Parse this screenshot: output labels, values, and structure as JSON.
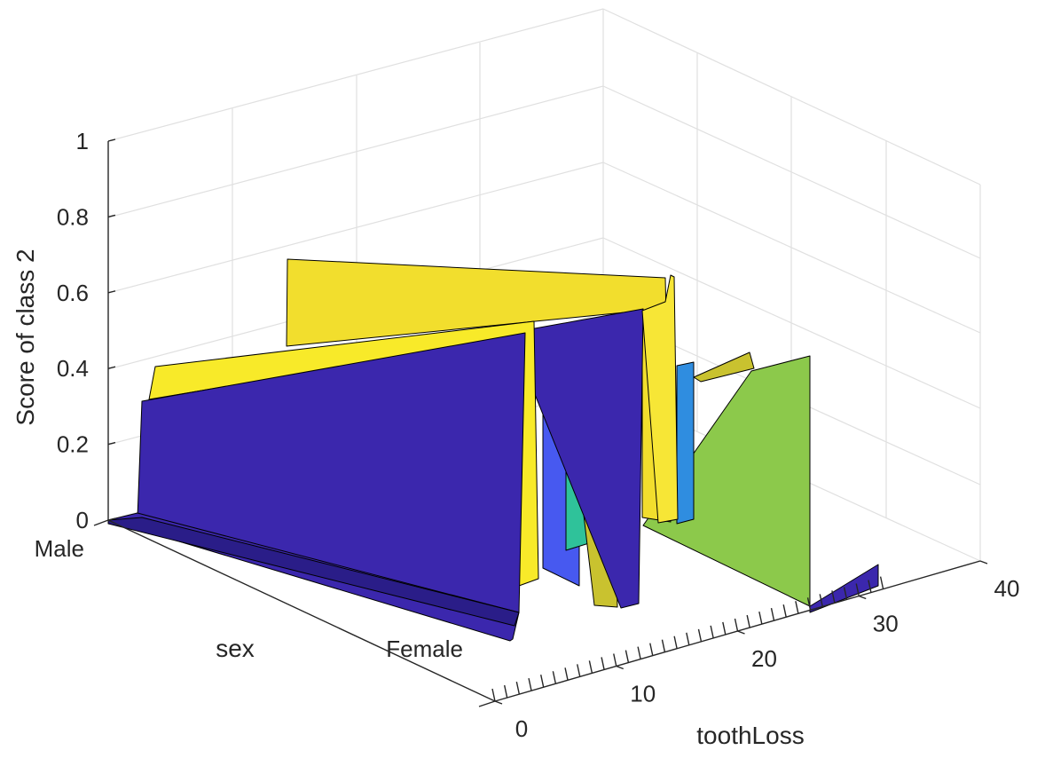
{
  "chart_data": {
    "type": "surface",
    "title": "",
    "xlabel": "toothLoss",
    "ylabel": "sex",
    "zlabel": "Score of class 2",
    "x_ticks": [
      "0",
      "10",
      "20",
      "30",
      "40"
    ],
    "y_ticks": [
      "Male",
      "Female"
    ],
    "z_ticks": [
      "0",
      "0.2",
      "0.4",
      "0.6",
      "0.8",
      "1"
    ],
    "xlim": [
      0,
      40
    ],
    "ylim": [
      "Male",
      "Female"
    ],
    "zlim": [
      0,
      1
    ],
    "grid": true,
    "colormap": "parula",
    "surface_profile": {
      "toothLoss": [
        0,
        1,
        2,
        3,
        4,
        5,
        6,
        7,
        8,
        9,
        10,
        11,
        12,
        13,
        14,
        15,
        16,
        17,
        18,
        19,
        20,
        21,
        22,
        23,
        24,
        25,
        26,
        27,
        28,
        29,
        30,
        31,
        32
      ],
      "score_male": [
        0,
        0.4,
        0.35,
        0.35,
        0.27,
        0.2,
        0.42,
        0.38,
        0.68,
        0.62,
        0.0,
        0.02,
        0.02,
        0.02,
        0.02,
        0.0,
        0.0,
        0.0,
        0.0,
        0.0,
        0.0,
        0.0,
        0.0,
        0.43,
        0.4,
        0.36,
        0.4,
        0.4,
        0.4,
        0.0,
        0.0,
        0.0,
        0.0
      ],
      "score_female": [
        0,
        0.33,
        0.33,
        0.4,
        0.37,
        0.41,
        0.3,
        0.3,
        0.67,
        0.65,
        0.0,
        0.0,
        0.0,
        0.0,
        0.0,
        0.0,
        0.0,
        0.0,
        0.0,
        0.0,
        0.0,
        0.0,
        0.0,
        0.42,
        0.4,
        0.38,
        0.38,
        0.38,
        0.38,
        0.0,
        0.0,
        0.0,
        0.0
      ]
    }
  }
}
